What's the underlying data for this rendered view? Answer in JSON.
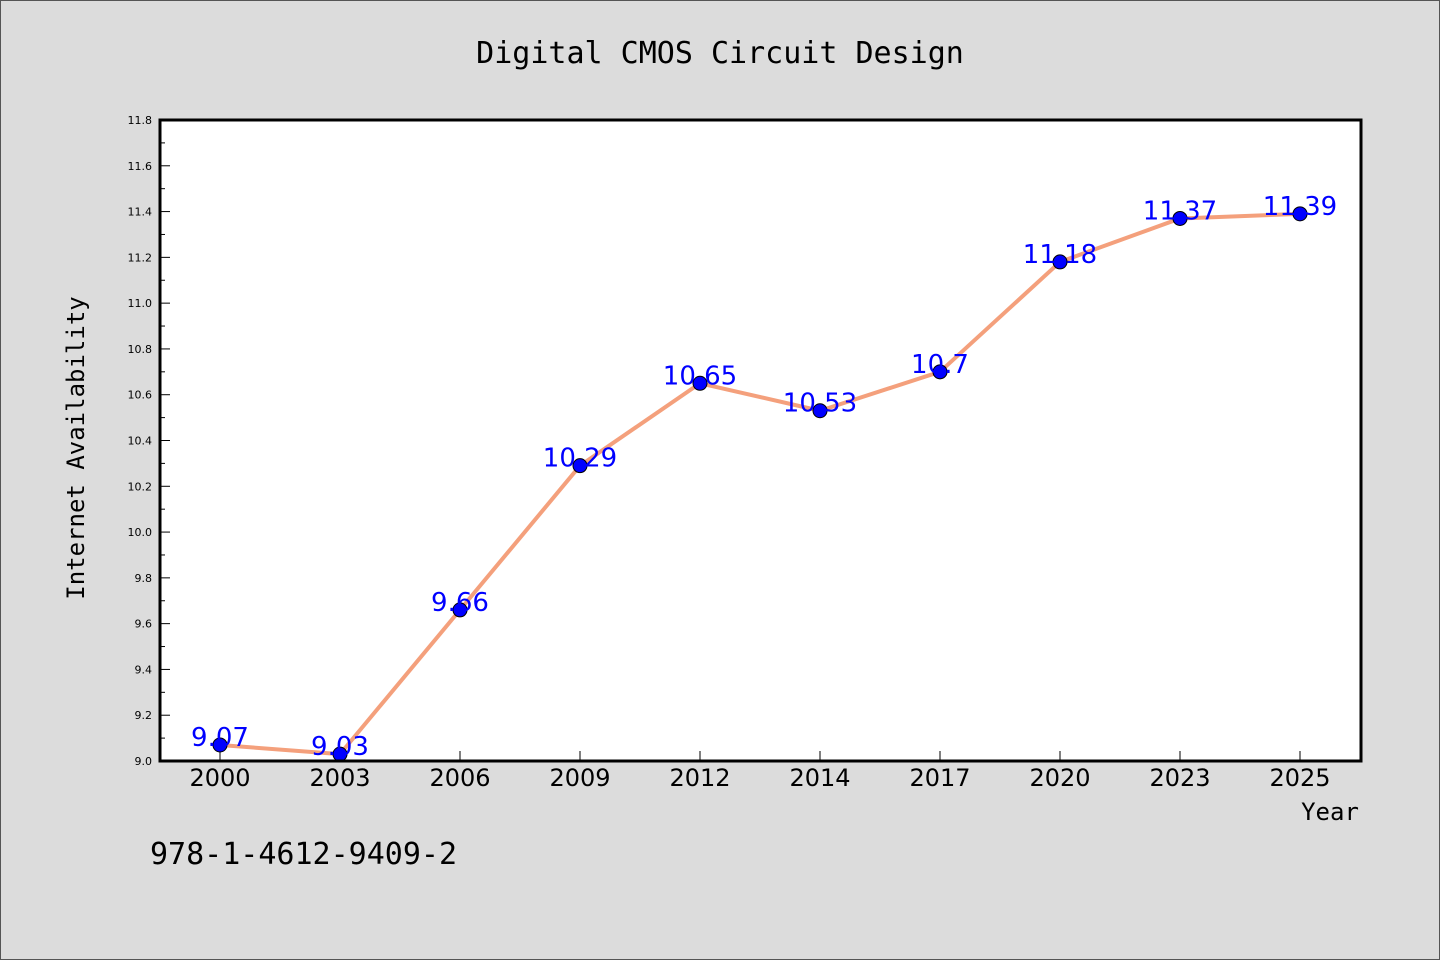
{
  "chart_data": {
    "type": "line",
    "title": "Digital CMOS Circuit Design",
    "xlabel": "Year",
    "ylabel": "Internet Availability",
    "categories": [
      "2000",
      "2003",
      "2006",
      "2009",
      "2012",
      "2014",
      "2017",
      "2020",
      "2023",
      "2025"
    ],
    "series": [
      {
        "values": [
          9.07,
          9.03,
          9.66,
          10.29,
          10.65,
          10.53,
          10.7,
          11.18,
          11.37,
          11.39
        ],
        "labels": [
          "9.07",
          "9.03",
          "9.66",
          "10.29",
          "10.65",
          "10.53",
          "10.7",
          "11.18",
          "11.37",
          "11.39"
        ],
        "line_color": "#f4a07c",
        "marker_color": "#0000ff"
      }
    ],
    "ylim": [
      9.0,
      11.8
    ],
    "yticks": [
      "9.0",
      "9.2",
      "9.4",
      "9.6",
      "9.8",
      "10.0",
      "10.2",
      "10.4",
      "10.6",
      "10.8",
      "11.0",
      "11.2",
      "11.4",
      "11.6",
      "11.8"
    ],
    "grid": false,
    "legend": false
  },
  "annotation": {
    "isbn": "978-1-4612-9409-2"
  },
  "colors": {
    "background": "#dcdcdc",
    "plot_background": "#ffffff",
    "label_color": "#0000ff"
  }
}
